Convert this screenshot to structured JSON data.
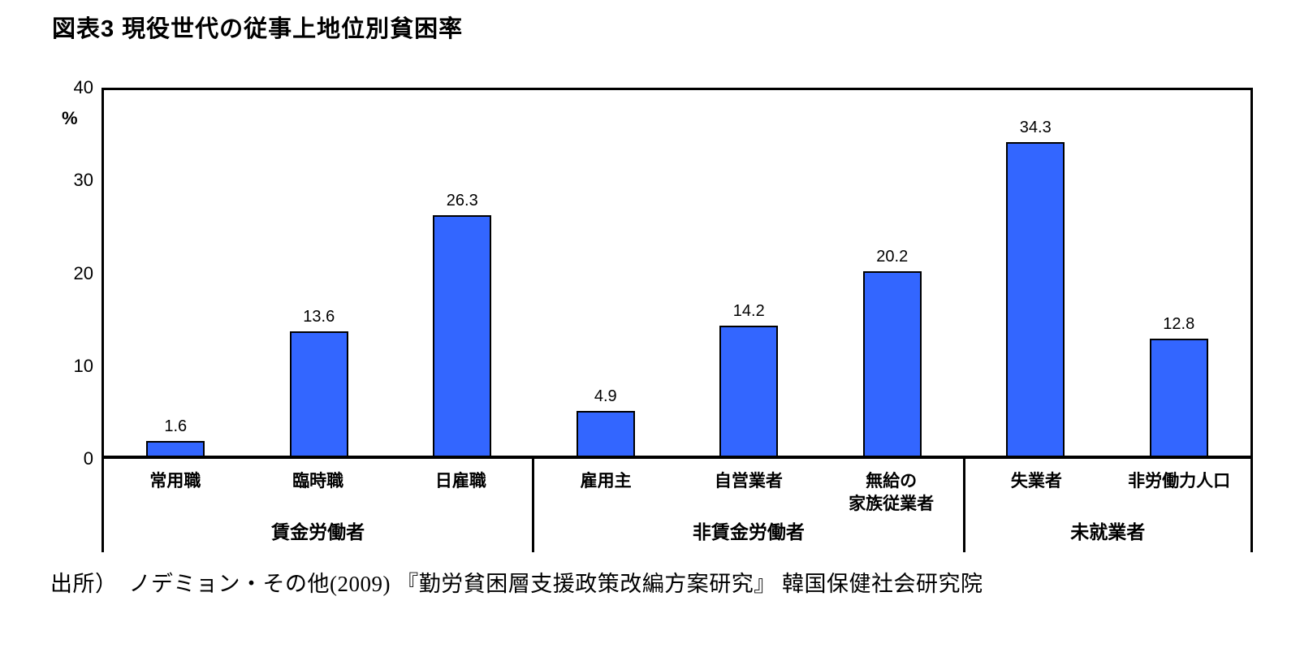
{
  "title": "図表3 現役世代の従事上地位別貧困率",
  "source": "出所）　ノデミョン・その他(2009) 『勤労貧困層支援政策改編方案研究』 韓国保健社会研究院",
  "colors": {
    "bar_fill": "#3366FF",
    "bar_border": "#000000",
    "axis": "#000000",
    "background": "#FFFFFF",
    "text": "#000000"
  },
  "chart_data": {
    "type": "bar",
    "title": "図表3 現役世代の従事上地位別貧困率",
    "xlabel": "",
    "ylabel": "%",
    "ylim": [
      0,
      40
    ],
    "yticks": [
      0,
      10,
      20,
      30,
      40
    ],
    "grid": false,
    "legend_position": "none",
    "value_labels": "above bars, one decimal",
    "groups": [
      {
        "label": "賃金労働者",
        "bars": [
          {
            "category": "常用職",
            "value": 1.6
          },
          {
            "category": "臨時職",
            "value": 13.6
          },
          {
            "category": "日雇職",
            "value": 26.3
          }
        ]
      },
      {
        "label": "非賃金労働者",
        "bars": [
          {
            "category": "雇用主",
            "value": 4.9
          },
          {
            "category": "自営業者",
            "value": 14.2
          },
          {
            "category": "無給の\n家族従業者",
            "value": 20.2
          }
        ]
      },
      {
        "label": "未就業者",
        "bars": [
          {
            "category": "失業者",
            "value": 34.3
          },
          {
            "category": "非労働力人口",
            "value": 12.8
          }
        ]
      }
    ]
  }
}
